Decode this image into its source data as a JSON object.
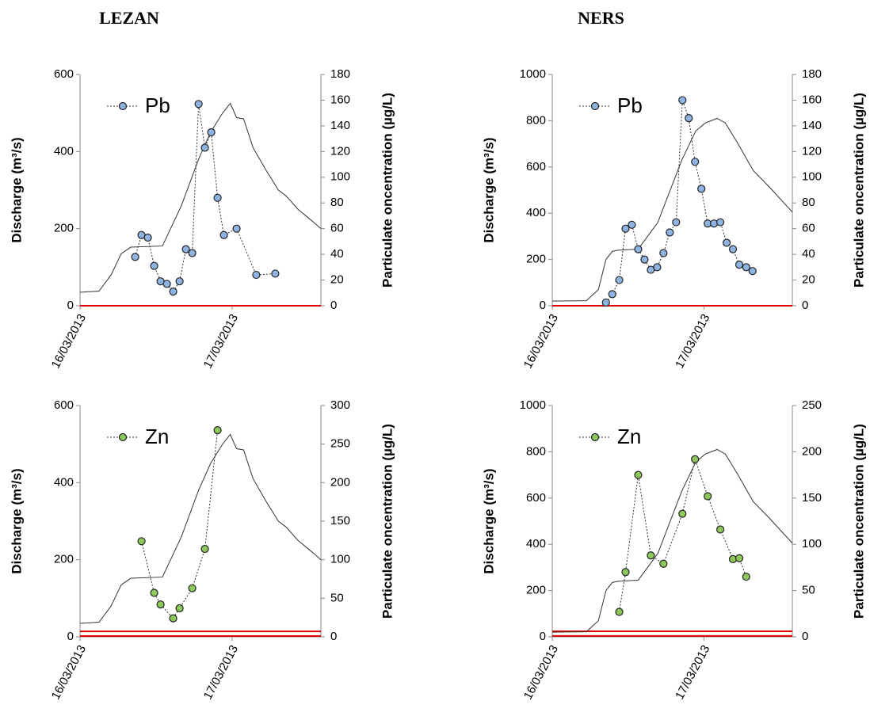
{
  "chart_data": [
    {
      "type": "line",
      "title": "LEZAN",
      "xlim": [
        0,
        38
      ],
      "xticks": [
        {
          "value": 0,
          "label": "16/03/2013"
        },
        {
          "value": 24,
          "label": "17/03/2013"
        }
      ],
      "ylabel": "Discharge (m³/s)",
      "ylim": [
        0,
        600
      ],
      "yticks": [
        0,
        200,
        400,
        600
      ],
      "y2label": "Particulate oncentration (µg/L)",
      "y2lim": [
        0,
        180
      ],
      "y2ticks": [
        0,
        20,
        40,
        60,
        80,
        100,
        120,
        140,
        160,
        180
      ],
      "legend": "upper left",
      "hlines": {
        "axis": "y2",
        "color": "#e00000",
        "values": [
          0
        ]
      },
      "series": [
        {
          "color": "#333333",
          "x": [
            0,
            3,
            4.9,
            6.5,
            8,
            13,
            16,
            18.7,
            20.6,
            22.5,
            23.7,
            24.7,
            25.8,
            27.3,
            29.4,
            31.3,
            32.5,
            34.4,
            36.6,
            38
          ],
          "values": [
            35,
            38,
            80,
            135,
            152,
            155,
            260,
            380,
            450,
            500,
            525,
            488,
            485,
            410,
            350,
            300,
            285,
            250,
            220,
            200
          ]
        },
        {
          "name": "Pb",
          "color": "#8fb4e3",
          "axis": "y2",
          "x": [
            8.7,
            9.7,
            10.7,
            11.7,
            12.7,
            13.7,
            14.7,
            15.7,
            16.7,
            17.7,
            18.7,
            19.7,
            20.7,
            21.7,
            22.7,
            24.7,
            27.8,
            30.8
          ],
          "values": [
            38,
            55,
            53,
            31,
            19,
            17,
            11,
            19,
            44,
            41,
            157,
            123,
            135,
            84,
            55,
            60,
            24,
            25
          ]
        }
      ]
    },
    {
      "type": "line",
      "title": "NERS",
      "xlim": [
        0,
        38
      ],
      "xticks": [
        {
          "value": 0,
          "label": "16/03/2013"
        },
        {
          "value": 24,
          "label": "17/03/2013"
        }
      ],
      "ylabel": "Discharge (m³/s)",
      "ylim": [
        0,
        1000
      ],
      "yticks": [
        0,
        200,
        400,
        600,
        800,
        1000
      ],
      "y2label": "Particulate oncentration (µg/L)",
      "y2lim": [
        0,
        180
      ],
      "y2ticks": [
        0,
        20,
        40,
        60,
        80,
        100,
        120,
        140,
        160,
        180
      ],
      "legend": "upper left",
      "hlines": {
        "axis": "y2",
        "color": "#e00000",
        "values": [
          0
        ]
      },
      "series": [
        {
          "color": "#333333",
          "x": [
            0,
            5.4,
            7.3,
            8.5,
            9.5,
            10.4,
            13.6,
            16.7,
            20.5,
            22.7,
            24.2,
            26.1,
            27.4,
            29.3,
            31.8,
            34.3,
            38
          ],
          "values": [
            20,
            22,
            70,
            200,
            235,
            240,
            245,
            360,
            630,
            755,
            790,
            810,
            790,
            705,
            585,
            515,
            405
          ]
        },
        {
          "name": "Pb",
          "color": "#8fb4e3",
          "axis": "y2",
          "x": [
            8.5,
            9.5,
            10.6,
            11.6,
            12.6,
            13.6,
            14.6,
            15.6,
            16.6,
            17.6,
            18.6,
            19.6,
            20.6,
            21.6,
            22.6,
            23.6,
            24.6,
            25.6,
            26.6,
            27.6,
            28.6,
            29.6,
            30.7,
            31.7
          ],
          "values": [
            2.5,
            9,
            20,
            60,
            63,
            44,
            36,
            28,
            30,
            41,
            57,
            65,
            160,
            146,
            112,
            91,
            64,
            64,
            65,
            49,
            44,
            32,
            30,
            27
          ]
        }
      ]
    },
    {
      "type": "line",
      "xlim": [
        0,
        38
      ],
      "xticks": [
        {
          "value": 0,
          "label": "16/03/2013"
        },
        {
          "value": 24,
          "label": "17/03/2013"
        }
      ],
      "ylabel": "Discharge (m³/s)",
      "ylim": [
        0,
        600
      ],
      "yticks": [
        0,
        200,
        400,
        600
      ],
      "y2label": "Particulate oncentration (µg/L)",
      "y2lim": [
        0,
        300
      ],
      "y2ticks": [
        0,
        50,
        100,
        150,
        200,
        250,
        300
      ],
      "legend": "upper left",
      "hlines": {
        "axis": "y2",
        "color": "#e00000",
        "values": [
          1,
          7
        ]
      },
      "series": [
        {
          "color": "#333333",
          "x": [
            0,
            3,
            4.9,
            6.5,
            8,
            13,
            16,
            18.7,
            20.6,
            22.5,
            23.7,
            24.7,
            25.8,
            27.3,
            29.4,
            31.3,
            32.5,
            34.4,
            36.6,
            38
          ],
          "values": [
            35,
            38,
            80,
            135,
            152,
            155,
            260,
            380,
            450,
            500,
            525,
            488,
            485,
            410,
            350,
            300,
            285,
            250,
            220,
            200
          ]
        },
        {
          "name": "Zn",
          "color": "#8dc85a",
          "axis": "y2",
          "x": [
            9.7,
            11.7,
            12.7,
            14.7,
            15.7,
            17.7,
            19.7,
            21.7
          ],
          "values": [
            124,
            57,
            42,
            24,
            37,
            63,
            114,
            268
          ]
        }
      ]
    },
    {
      "type": "line",
      "xlim": [
        0,
        38
      ],
      "xticks": [
        {
          "value": 0,
          "label": "16/03/2013"
        },
        {
          "value": 24,
          "label": "17/03/2013"
        }
      ],
      "ylabel": "Discharge (m³/s)",
      "ylim": [
        0,
        1000
      ],
      "yticks": [
        0,
        200,
        400,
        600,
        800,
        1000
      ],
      "y2label": "Particulate oncentration (µg/L)",
      "y2lim": [
        0,
        250
      ],
      "y2ticks": [
        0,
        50,
        100,
        150,
        200,
        250
      ],
      "legend": "upper left",
      "hlines": {
        "axis": "y2",
        "color": "#e00000",
        "values": [
          1,
          6
        ]
      },
      "series": [
        {
          "color": "#333333",
          "x": [
            0,
            5.4,
            7.3,
            8.5,
            9.5,
            10.4,
            13.6,
            16.7,
            20.5,
            22.7,
            24.2,
            26.1,
            27.4,
            29.3,
            31.8,
            34.3,
            38
          ],
          "values": [
            20,
            22,
            70,
            200,
            235,
            240,
            245,
            360,
            630,
            755,
            790,
            810,
            790,
            705,
            585,
            515,
            405
          ]
        },
        {
          "name": "Zn",
          "color": "#8dc85a",
          "axis": "y2",
          "x": [
            10.6,
            11.6,
            13.6,
            15.6,
            17.6,
            20.6,
            22.6,
            24.6,
            26.6,
            28.6,
            29.6,
            30.7
          ],
          "values": [
            27,
            70,
            175,
            88,
            79,
            133,
            192,
            152,
            116,
            84,
            85,
            65
          ]
        }
      ]
    }
  ]
}
